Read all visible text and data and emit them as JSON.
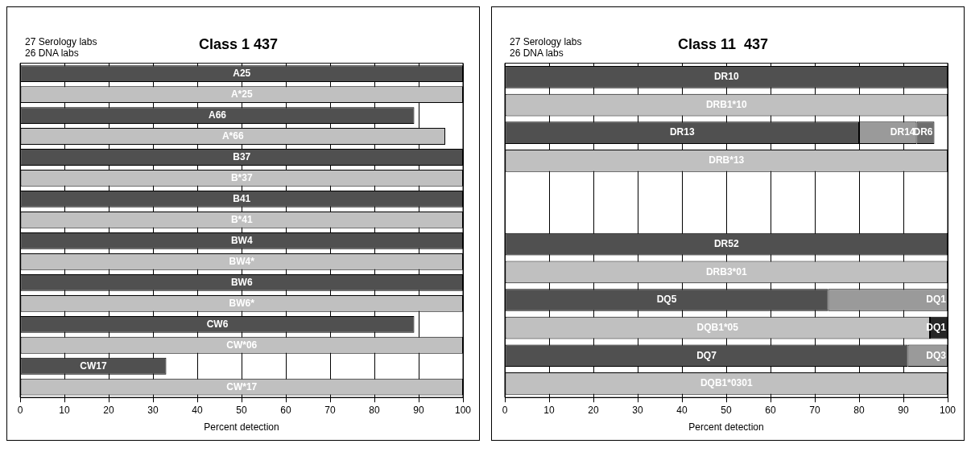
{
  "chart_data": [
    {
      "type": "bar",
      "orientation": "horizontal",
      "title": "Class 1 437",
      "xlabel": "Percent detection",
      "annotations": [
        "27 Serology labs",
        "26 DNA labs"
      ],
      "categories": [
        "A25",
        "A*25",
        "A66",
        "A*66",
        "B37",
        "B*37",
        "B41",
        "B*41",
        "BW4",
        "BW4*",
        "BW6",
        "BW6*",
        "CW6",
        "CW*06",
        "CW17",
        "CW*17"
      ],
      "series": [
        {
          "colors": [
            "#505050",
            "#c0c0c0",
            "#505050",
            "#c0c0c0",
            "#505050",
            "#c0c0c0",
            "#505050",
            "#c0c0c0",
            "#505050",
            "#c0c0c0",
            "#505050",
            "#c0c0c0",
            "#505050",
            "#c0c0c0",
            "#505050",
            "#c0c0c0"
          ],
          "values": [
            100,
            100,
            89,
            96,
            100,
            100,
            100,
            100,
            100,
            100,
            100,
            100,
            89,
            100,
            33,
            100
          ]
        }
      ],
      "xlim": [
        0,
        100
      ],
      "xticks": [
        0,
        10,
        20,
        30,
        40,
        50,
        60,
        70,
        80,
        90,
        100
      ],
      "grid": "x",
      "tick_labels": "x"
    },
    {
      "type": "bar",
      "orientation": "horizontal",
      "stacked": true,
      "title": "Class 11  437",
      "xlabel": "Percent detection",
      "annotations": [
        "27 Serology labs",
        "26 DNA labs",
        {
          "text": "DR14",
          "x": 93,
          "y": "DR13"
        },
        {
          "text": "DR6",
          "x": 97,
          "y": "DR13"
        },
        {
          "text": "DQ1",
          "x": 100,
          "y": "DQ5"
        },
        {
          "text": "DQ1",
          "x": 100,
          "y": "DQB1*05"
        },
        {
          "text": "DQ3",
          "x": 100,
          "y": "DQ7"
        }
      ],
      "categories": [
        "DR10",
        "DRB1*10",
        "DR13",
        "DRB*13",
        null,
        null,
        "DR52",
        "DRB3*01",
        "DQ5",
        "DQB1*05",
        "DQ7",
        "DQB1*0301"
      ],
      "series": [
        {
          "color": "#505050",
          "values": [
            100,
            null,
            80,
            null,
            null,
            null,
            100,
            null,
            73,
            null,
            91,
            null
          ]
        },
        {
          "color": "#c0c0c0",
          "values": [
            null,
            100,
            null,
            100,
            null,
            null,
            null,
            100,
            null,
            96,
            null,
            100
          ]
        },
        {
          "color": "#9a9a9a",
          "values": [
            null,
            null,
            13,
            null,
            null,
            null,
            null,
            null,
            27,
            null,
            9,
            null
          ]
        },
        {
          "color": "#6e6e6e",
          "values": [
            null,
            null,
            4,
            null,
            null,
            null,
            null,
            null,
            null,
            null,
            null,
            null
          ]
        },
        {
          "color": "#262626",
          "values": [
            null,
            null,
            null,
            null,
            null,
            null,
            null,
            null,
            null,
            4,
            null,
            null
          ]
        }
      ],
      "xlim": [
        0,
        100
      ],
      "xticks": [
        0,
        10,
        20,
        30,
        40,
        50,
        60,
        70,
        80,
        90,
        100
      ],
      "grid": "x",
      "tick_labels": "x"
    }
  ]
}
